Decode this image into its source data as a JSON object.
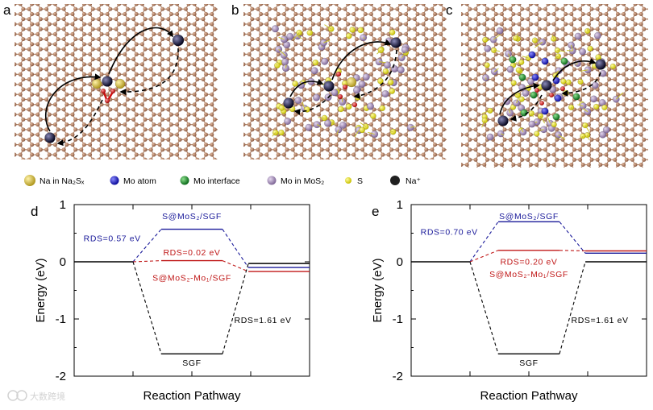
{
  "panel_letters": [
    "a",
    "b",
    "c",
    "d",
    "e"
  ],
  "legend": [
    {
      "label": "Na in Na₂Sₓ",
      "color": "#d8c040",
      "kind": "big"
    },
    {
      "label": "Mo atom",
      "color": "#1818c8",
      "kind": "small"
    },
    {
      "label": "Mo interface",
      "color": "#1a8a2a",
      "kind": "small"
    },
    {
      "label": "Mo in MoS₂",
      "color": "#a890b8",
      "kind": "small"
    },
    {
      "label": "S",
      "color": "#e8e020",
      "kind": "tiny"
    },
    {
      "label": "Na⁺",
      "color": "#202020",
      "kind": "small"
    }
  ],
  "colors": {
    "carbon": "#a0705a",
    "sulfur": "#e8e020",
    "mo_mos2": "#a890b8",
    "mo_atom": "#1818c8",
    "mo_interface": "#1a8a2a",
    "na_ion": "#101030",
    "oxygen_red": "#e01010",
    "blue_path": "#1a1a9a",
    "red_path": "#c01818",
    "black_path": "#000000"
  },
  "watermark": "大数跨境",
  "chart_data": [
    {
      "panel": "d",
      "type": "line",
      "xlabel": "Reaction Pathway",
      "ylabel": "Energy (eV)",
      "ylim": [
        -2,
        1
      ],
      "yticks": [
        -2,
        -1,
        0,
        1
      ],
      "series": [
        {
          "name": "S@MoS₂/SGF",
          "color": "#1a1a9a",
          "levels": [
            0,
            0.57,
            -0.1
          ]
        },
        {
          "name": "S@MoS₂-Mo₁/SGF",
          "color": "#c01818",
          "levels": [
            0,
            0.02,
            -0.17
          ]
        },
        {
          "name": "SGF",
          "color": "#000000",
          "levels": [
            0,
            -1.61,
            -0.03
          ]
        }
      ],
      "annotations": {
        "rds_blue": "RDS=0.57 eV",
        "rds_red": "RDS=0.02 eV",
        "rds_black": "RDS=1.61 eV",
        "label_blue": "S@MoS₂/SGF",
        "label_red": "S@MoS₂-Mo₁/SGF",
        "label_black": "SGF"
      }
    },
    {
      "panel": "e",
      "type": "line",
      "xlabel": "Reaction Pathway",
      "ylabel": "Energy (eV)",
      "ylim": [
        -2,
        1
      ],
      "yticks": [
        -2,
        -1,
        0,
        1
      ],
      "series": [
        {
          "name": "S@MoS₂/SGF",
          "color": "#1a1a9a",
          "levels": [
            0,
            0.7,
            0.15
          ]
        },
        {
          "name": "S@MoS₂-Mo₁/SGF",
          "color": "#c01818",
          "levels": [
            0,
            0.2,
            0.19
          ]
        },
        {
          "name": "SGF",
          "color": "#000000",
          "levels": [
            0,
            -1.61,
            0
          ]
        }
      ],
      "annotations": {
        "rds_blue": "RDS=0.70 eV",
        "rds_red": "RDS=0.20 eV",
        "rds_black": "RDS=1.61 eV",
        "label_blue": "S@MoS₂/SGF",
        "label_red": "S@MoS₂-Mo₁/SGF",
        "label_black": "SGF"
      }
    }
  ]
}
